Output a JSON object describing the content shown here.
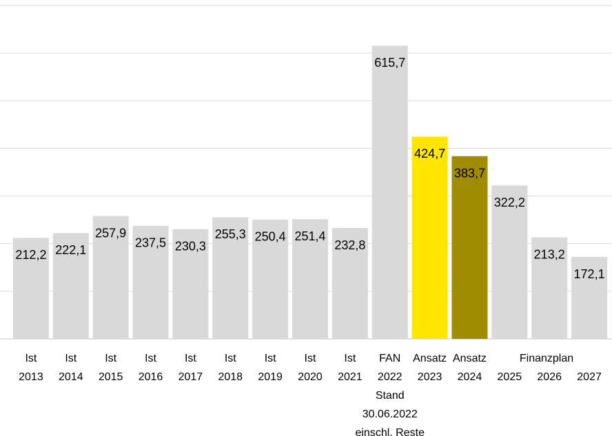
{
  "chart_data": {
    "type": "bar",
    "categories": [
      [
        "Ist",
        "2013"
      ],
      [
        "Ist",
        "2014"
      ],
      [
        "Ist",
        "2015"
      ],
      [
        "Ist",
        "2016"
      ],
      [
        "Ist",
        "2017"
      ],
      [
        "Ist",
        "2018"
      ],
      [
        "Ist",
        "2019"
      ],
      [
        "Ist",
        "2020"
      ],
      [
        "Ist",
        "2021"
      ],
      [
        "FAN",
        "2022",
        "Stand",
        "30.06.2022",
        "einschl. Reste"
      ],
      [
        "Ansatz",
        "2023"
      ],
      [
        "Ansatz",
        "2024"
      ],
      [
        "2025"
      ],
      [
        "2026"
      ],
      [
        "2027"
      ]
    ],
    "values": [
      212.2,
      222.1,
      257.9,
      237.5,
      230.3,
      255.3,
      250.4,
      251.4,
      232.8,
      615.7,
      424.7,
      383.7,
      322.2,
      213.2,
      172.1
    ],
    "value_labels": [
      "212,2",
      "222,1",
      "257,9",
      "237,5",
      "230,3",
      "255,3",
      "250,4",
      "251,4",
      "232,8",
      "615,7",
      "424,7",
      "383,7",
      "322,2",
      "213,2",
      "172,1"
    ],
    "colors": [
      "#d9d9d9",
      "#d9d9d9",
      "#d9d9d9",
      "#d9d9d9",
      "#d9d9d9",
      "#d9d9d9",
      "#d9d9d9",
      "#d9d9d9",
      "#d9d9d9",
      "#d9d9d9",
      "#ffe600",
      "#a08c00",
      "#d9d9d9",
      "#d9d9d9",
      "#d9d9d9"
    ],
    "annotation": "Finanzplan",
    "ylim": [
      0,
      700
    ],
    "yticks": [
      0,
      100,
      200,
      300,
      400,
      500,
      600,
      700
    ],
    "grid": true
  }
}
